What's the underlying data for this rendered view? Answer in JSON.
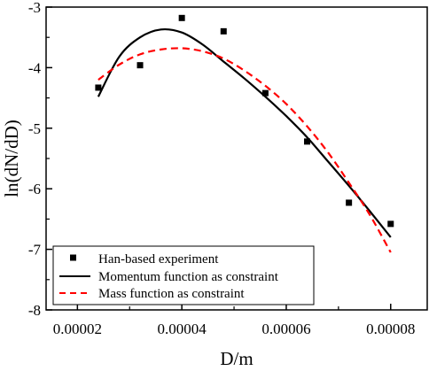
{
  "chart_data": {
    "type": "scatter",
    "title": "",
    "xlabel": "D/m",
    "ylabel": "ln(dN/dD)",
    "xlim": [
      1.4e-05,
      8.7e-05
    ],
    "ylim": [
      -8,
      -3
    ],
    "x_ticks": [
      2e-05,
      4e-05,
      6e-05,
      8e-05
    ],
    "x_tick_labels": [
      "0.00002",
      "0.00004",
      "0.00006",
      "0.00008"
    ],
    "y_ticks": [
      -3,
      -4,
      -5,
      -6,
      -7,
      -8
    ],
    "y_tick_labels": [
      "-3",
      "-4",
      "-5",
      "-6",
      "-7",
      "-8"
    ],
    "grid": false,
    "legend_position": "bottom-left",
    "series": [
      {
        "name": "Han-based experiment",
        "kind": "scatter",
        "color": "#000000",
        "marker": "square",
        "x": [
          2.4e-05,
          3.2e-05,
          4e-05,
          4.8e-05,
          5.6e-05,
          6.4e-05,
          7.2e-05,
          8e-05
        ],
        "y": [
          -4.33,
          -3.96,
          -3.18,
          -3.4,
          -4.42,
          -5.22,
          -6.23,
          -6.58
        ]
      },
      {
        "name": "Momentum function as constraint",
        "kind": "line",
        "color": "#000000",
        "dash": "solid",
        "x": [
          2.4e-05,
          2.8e-05,
          3.2e-05,
          3.6e-05,
          4e-05,
          4.4e-05,
          4.8e-05,
          5.2e-05,
          5.6e-05,
          6e-05,
          6.4e-05,
          6.8e-05,
          7.2e-05,
          7.6e-05,
          8e-05
        ],
        "y": [
          -4.48,
          -3.82,
          -3.5,
          -3.37,
          -3.42,
          -3.62,
          -3.9,
          -4.18,
          -4.48,
          -4.8,
          -5.15,
          -5.55,
          -5.95,
          -6.37,
          -6.8
        ]
      },
      {
        "name": "Mass function as constraint",
        "kind": "line",
        "color": "#ff0000",
        "dash": "dashed",
        "x": [
          2.4e-05,
          2.8e-05,
          3.2e-05,
          3.6e-05,
          4e-05,
          4.4e-05,
          4.8e-05,
          5.2e-05,
          5.6e-05,
          6e-05,
          6.4e-05,
          6.8e-05,
          7.2e-05,
          7.6e-05,
          8e-05
        ],
        "y": [
          -4.2,
          -3.95,
          -3.78,
          -3.7,
          -3.68,
          -3.73,
          -3.85,
          -4.05,
          -4.3,
          -4.6,
          -4.97,
          -5.4,
          -5.9,
          -6.43,
          -7.05
        ]
      }
    ]
  }
}
